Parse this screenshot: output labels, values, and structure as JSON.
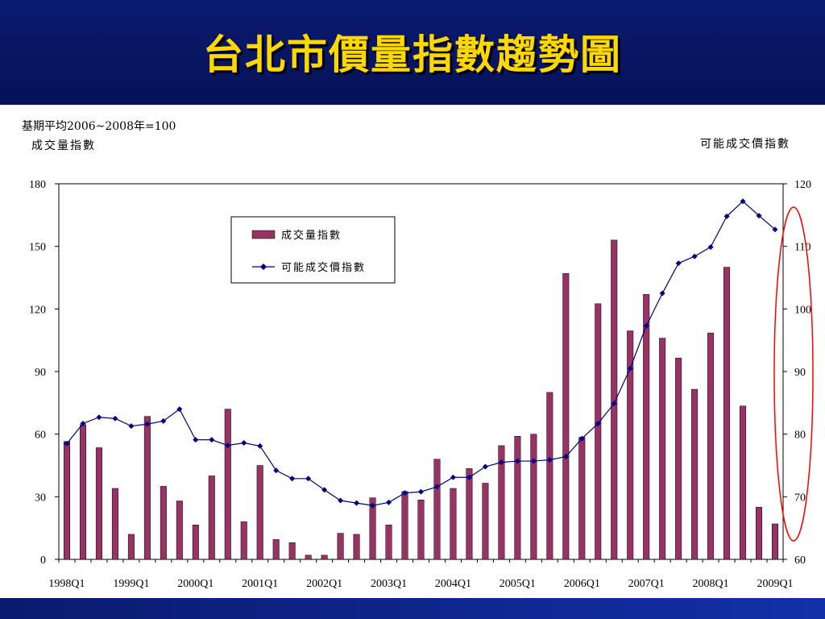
{
  "page_title": "台北市價量指數趨勢圖",
  "base_note": "基期平均2006~2008年=100",
  "left_axis_title": "成交量指數",
  "right_axis_title": "可能成交價指數",
  "colors": {
    "bar": "#993366",
    "line": "#000080",
    "highlight": "#ff0000",
    "title": "#ffd800"
  },
  "chart_data": {
    "type": "bar",
    "grid": false,
    "legend_position": "top-left",
    "categories": [
      "1998Q1",
      "1998Q2",
      "1998Q3",
      "1998Q4",
      "1999Q1",
      "1999Q2",
      "1999Q3",
      "1999Q4",
      "2000Q1",
      "2000Q2",
      "2000Q3",
      "2000Q4",
      "2001Q1",
      "2001Q2",
      "2001Q3",
      "2001Q4",
      "2002Q1",
      "2002Q2",
      "2002Q3",
      "2002Q4",
      "2003Q1",
      "2003Q2",
      "2003Q3",
      "2003Q4",
      "2004Q1",
      "2004Q2",
      "2004Q3",
      "2004Q4",
      "2005Q1",
      "2005Q2",
      "2005Q3",
      "2005Q4",
      "2006Q1",
      "2006Q2",
      "2006Q3",
      "2006Q4",
      "2007Q1",
      "2007Q2",
      "2007Q3",
      "2007Q4",
      "2008Q1",
      "2008Q2",
      "2008Q3",
      "2008Q4",
      "2009Q1"
    ],
    "x_tick_labels": [
      "1998Q1",
      "1999Q1",
      "2000Q1",
      "2001Q1",
      "2002Q1",
      "2003Q1",
      "2004Q1",
      "2005Q1",
      "2006Q1",
      "2007Q1",
      "2008Q1",
      "2009Q1"
    ],
    "y_left_ticks": [
      0,
      30,
      60,
      90,
      120,
      150,
      180
    ],
    "y_right_ticks": [
      60,
      70,
      80,
      90,
      100,
      110,
      120
    ],
    "y_left_lim": [
      0,
      180
    ],
    "y_right_lim": [
      60,
      120
    ],
    "series": [
      {
        "name": "成交量指數",
        "type": "bar",
        "axis": "left",
        "values": [
          56.5,
          64.5,
          53.5,
          34,
          12,
          68.5,
          35,
          28,
          16.5,
          40,
          72,
          18,
          45,
          9.5,
          8,
          2,
          2,
          12.5,
          12,
          29.5,
          16.5,
          32.5,
          28.5,
          48,
          34,
          43.5,
          36.5,
          54.5,
          59,
          60,
          80,
          137,
          58.5,
          122.5,
          153,
          109.5,
          127,
          106,
          96.5,
          81.5,
          108.5,
          140,
          73.5,
          25,
          17
        ]
      },
      {
        "name": "可能成交價指數",
        "type": "line",
        "axis": "right",
        "values": [
          78.5,
          81.7,
          82.7,
          82.5,
          81.3,
          81.6,
          82.1,
          84.0,
          79.1,
          79.1,
          78.2,
          78.6,
          78.1,
          74.2,
          72.9,
          72.9,
          71.1,
          69.4,
          69.0,
          68.6,
          69.1,
          70.6,
          70.8,
          71.6,
          73.1,
          73.1,
          74.8,
          75.5,
          75.7,
          75.7,
          75.9,
          76.4,
          79.3,
          81.7,
          84.9,
          90.5,
          97.3,
          102.5,
          107.3,
          108.4,
          109.9,
          114.8,
          117.2,
          114.9,
          112.7
        ]
      }
    ]
  }
}
